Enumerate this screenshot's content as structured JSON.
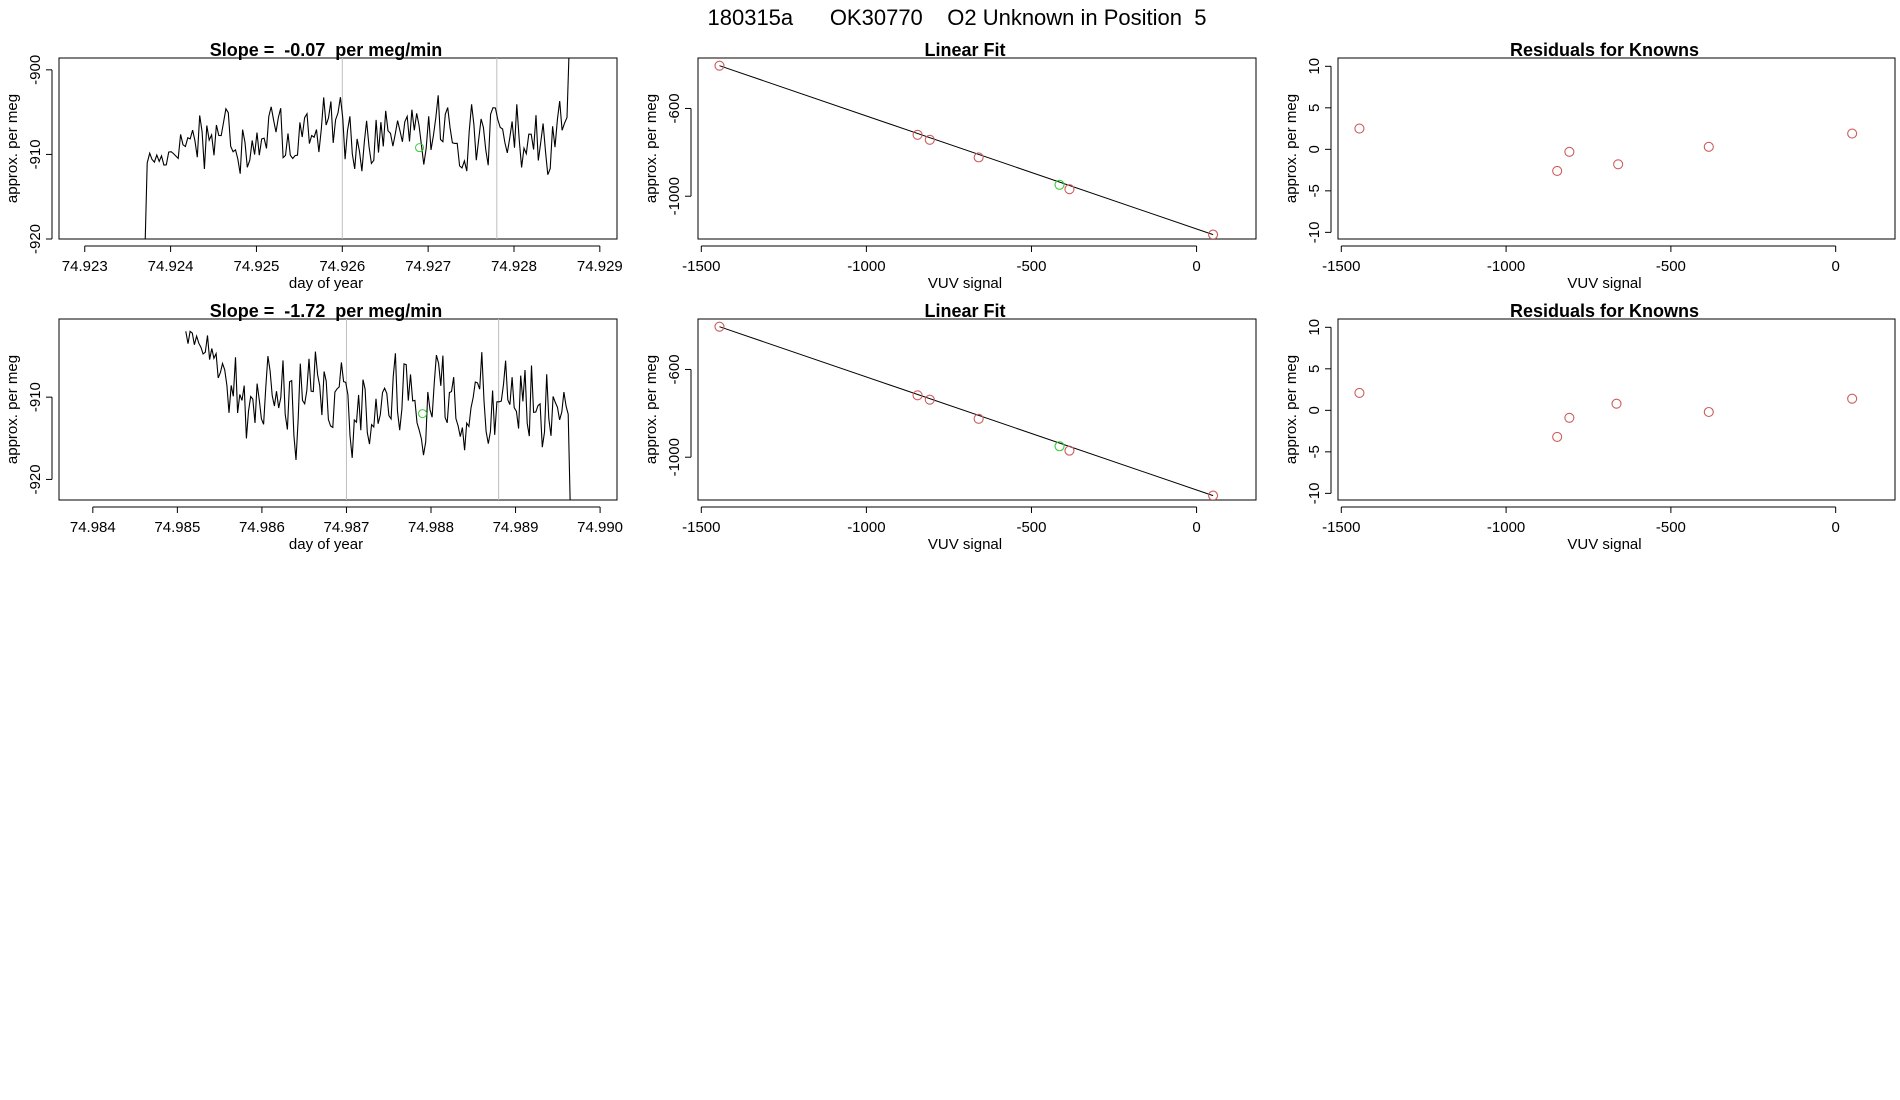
{
  "page_title": "180315a      OK30770    O2 Unknown in Position  5",
  "colors": {
    "axis": "#000000",
    "line": "#000000",
    "known_point": "#cd5c5c",
    "unknown_point": "#32cd32",
    "vline": "#bebebe"
  },
  "chart_data": [
    {
      "type": "line",
      "title": "Slope =  -0.07  per meg/min",
      "xlabel": "day of year",
      "ylabel": "approx. per meg",
      "xlim": [
        74.9227,
        74.9292
      ],
      "ylim": [
        -920.0,
        -898.6
      ],
      "xticks": [
        74.923,
        74.924,
        74.925,
        74.926,
        74.927,
        74.928,
        74.929
      ],
      "xtick_labels": [
        "74.923",
        "74.924",
        "74.925",
        "74.926",
        "74.927",
        "74.928",
        "74.929"
      ],
      "yticks": [
        -900,
        -910,
        -920
      ],
      "ytick_labels": [
        "-900",
        "-910",
        "-920"
      ],
      "vlines": [
        74.926,
        74.9278
      ],
      "marker": {
        "x": 74.9269,
        "y": -909.2
      },
      "series": [
        {
          "x": [],
          "y": []
        }
      ],
      "seed": 17,
      "trace": {
        "x0": 74.9237,
        "x1": 74.9287,
        "y0": -922,
        "y_rise_end": -910.5,
        "y_level": -907.5,
        "amp": 3.2,
        "y_end": -897
      }
    },
    {
      "type": "scatter",
      "title": "Linear Fit",
      "xlabel": "VUV signal",
      "ylabel": "approx. per meg",
      "xlim": [
        -1510,
        180
      ],
      "ylim": [
        -1195,
        -370
      ],
      "xticks": [
        -1500,
        -1000,
        -500,
        0
      ],
      "xtick_labels": [
        "-1500",
        "-1000",
        "-500",
        "0"
      ],
      "yticks": [
        -600,
        -1000
      ],
      "ytick_labels": [
        "-600",
        "-1000"
      ],
      "fit_line": {
        "x": [
          -1445,
          50
        ],
        "y": [
          -405,
          -1175
        ]
      },
      "known_points": {
        "x": [
          -1445,
          -845,
          -808,
          -660,
          -385,
          50
        ],
        "y": [
          -405,
          -720,
          -743,
          -823,
          -968,
          -1175
        ]
      },
      "unknown_point": {
        "x": -415,
        "y": -948
      }
    },
    {
      "type": "scatter",
      "title": "Residuals for Knowns",
      "xlabel": "VUV signal",
      "ylabel": "approx. per meg",
      "xlim": [
        -1510,
        180
      ],
      "ylim": [
        -10.8,
        11
      ],
      "xticks": [
        -1500,
        -1000,
        -500,
        0
      ],
      "xtick_labels": [
        "-1500",
        "-1000",
        "-500",
        "0"
      ],
      "yticks": [
        10,
        5,
        0,
        -5,
        -10
      ],
      "ytick_labels": [
        "10",
        "5",
        "0",
        "-5",
        "-10"
      ],
      "points": {
        "x": [
          -1445,
          -845,
          -808,
          -660,
          -385,
          50
        ],
        "y": [
          2.5,
          -2.6,
          -0.3,
          -1.8,
          0.3,
          1.9
        ]
      }
    },
    {
      "type": "line",
      "title": "Slope =  -1.72  per meg/min",
      "xlabel": "day of year",
      "ylabel": "approx. per meg",
      "xlim": [
        74.9836,
        74.9902
      ],
      "ylim": [
        -922.5,
        -900.5
      ],
      "xticks": [
        74.984,
        74.985,
        74.986,
        74.987,
        74.988,
        74.989,
        74.99
      ],
      "xtick_labels": [
        "74.984",
        "74.985",
        "74.986",
        "74.987",
        "74.988",
        "74.989",
        "74.990"
      ],
      "yticks": [
        -910,
        -920
      ],
      "ytick_labels": [
        "-910",
        "-920"
      ],
      "vlines": [
        74.987,
        74.9888
      ],
      "marker": {
        "x": 74.9879,
        "y": -912.0
      },
      "series": [
        {
          "x": [],
          "y": []
        }
      ],
      "seed": 41,
      "trace": {
        "x0": 74.9851,
        "x1": 74.9897,
        "y0": -902,
        "y_rise_end": -903,
        "y_level": -910.5,
        "amp": 4.5,
        "y_end": -924
      }
    },
    {
      "type": "scatter",
      "title": "Linear Fit",
      "xlabel": "VUV signal",
      "ylabel": "approx. per meg",
      "xlim": [
        -1510,
        180
      ],
      "ylim": [
        -1195,
        -370
      ],
      "xticks": [
        -1500,
        -1000,
        -500,
        0
      ],
      "xtick_labels": [
        "-1500",
        "-1000",
        "-500",
        "0"
      ],
      "yticks": [
        -600,
        -1000
      ],
      "ytick_labels": [
        "-600",
        "-1000"
      ],
      "fit_line": {
        "x": [
          -1445,
          50
        ],
        "y": [
          -405,
          -1175
        ]
      },
      "known_points": {
        "x": [
          -1445,
          -845,
          -808,
          -660,
          -385,
          50
        ],
        "y": [
          -405,
          -718,
          -738,
          -825,
          -970,
          -1175
        ]
      },
      "unknown_point": {
        "x": -415,
        "y": -950
      }
    },
    {
      "type": "scatter",
      "title": "Residuals for Knowns",
      "xlabel": "VUV signal",
      "ylabel": "approx. per meg",
      "xlim": [
        -1510,
        180
      ],
      "ylim": [
        -10.8,
        11
      ],
      "xticks": [
        -1500,
        -1000,
        -500,
        0
      ],
      "xtick_labels": [
        "-1500",
        "-1000",
        "-500",
        "0"
      ],
      "yticks": [
        10,
        5,
        0,
        -5,
        -10
      ],
      "ytick_labels": [
        "10",
        "5",
        "0",
        "-5",
        "-10"
      ],
      "points": {
        "x": [
          -1445,
          -845,
          -808,
          -665,
          -385,
          50
        ],
        "y": [
          2.1,
          -3.2,
          -0.9,
          0.8,
          -0.2,
          1.4
        ]
      }
    }
  ]
}
